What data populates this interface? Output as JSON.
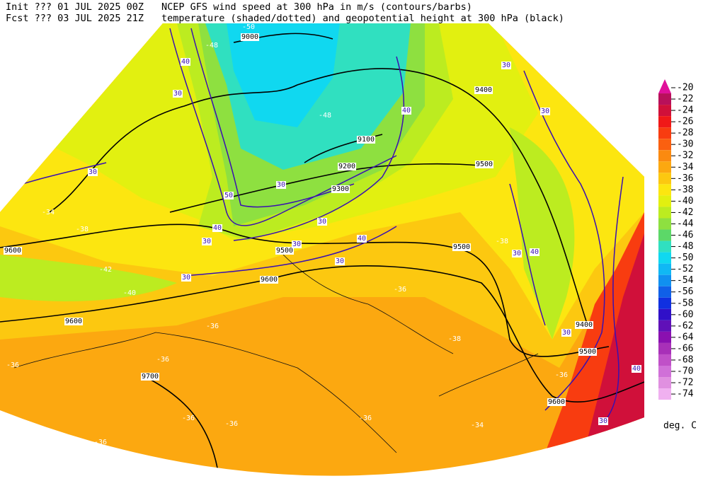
{
  "header": {
    "init": "Init  ??? 01 JUL 2025 00Z",
    "fcst": "Fcst ??? 03 JUL 2025 21Z",
    "title": "NCEP GFS wind speed at 300 hPa in m/s (contours/barbs)",
    "subtitle": "temperature (shaded/dotted) and geopotential height at 300 hPa (black)"
  },
  "colorbar": {
    "labels": [
      -20,
      -22,
      -24,
      -26,
      -28,
      -30,
      -32,
      -34,
      -36,
      -38,
      -40,
      -42,
      -44,
      -46,
      -48,
      -50,
      -52,
      -54,
      -56,
      -58,
      -60,
      -62,
      -64,
      -66,
      -68,
      -70,
      -72,
      -74
    ],
    "colors": [
      "#e0109a",
      "#b8105a",
      "#d0103a",
      "#f01818",
      "#f83c10",
      "#fa6010",
      "#fb8a10",
      "#fca810",
      "#fcc810",
      "#fce610",
      "#e2f010",
      "#bcec20",
      "#8ee040",
      "#5cd868",
      "#30e0c0",
      "#10d8f0",
      "#10b8f4",
      "#1090f0",
      "#1060e8",
      "#1030e0",
      "#3010c8",
      "#6010b8",
      "#8a10b0",
      "#a830b8",
      "#c050c8",
      "#d070d8",
      "#e090e0",
      "#f0b0f0"
    ],
    "unit": "deg. C"
  },
  "map_labels": {
    "heights": [
      9000,
      9100,
      9200,
      9300,
      9400,
      9500,
      9500,
      9500,
      9500,
      9600,
      9600,
      9600,
      9600,
      9400,
      9700
    ],
    "temperatures": [
      -50,
      -48,
      -48,
      -34,
      -38,
      -42,
      -40,
      -36,
      -36,
      -36,
      -36,
      -38,
      -38,
      -36,
      -36,
      -36,
      -34,
      -36,
      -36
    ],
    "wind_speeds": [
      30,
      30,
      40,
      30,
      40,
      30,
      50,
      40,
      30,
      30,
      40,
      30,
      30,
      30,
      30,
      40,
      30,
      40,
      30,
      30
    ]
  }
}
